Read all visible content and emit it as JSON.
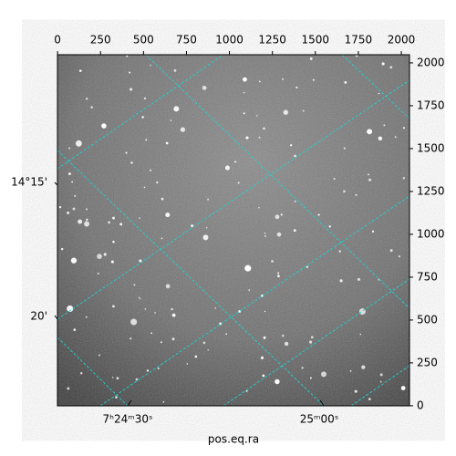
{
  "chart_data": {
    "type": "image",
    "xlabel": "pos.eq.ra",
    "ra_labels": [
      "7ʰ24ᵐ30ˢ",
      "25ᵐ00ˢ"
    ],
    "dec_labels": [
      "14°15'",
      "20'"
    ],
    "xlim": [
      -0.5,
      2047.5
    ],
    "xticks": [
      0,
      250,
      500,
      750,
      1000,
      1250,
      1500,
      1750,
      2000
    ],
    "ylim": [
      -0.5,
      2047.5
    ],
    "yticks": [
      0,
      250,
      500,
      750,
      1000,
      1250,
      1500,
      1750,
      2000
    ]
  }
}
